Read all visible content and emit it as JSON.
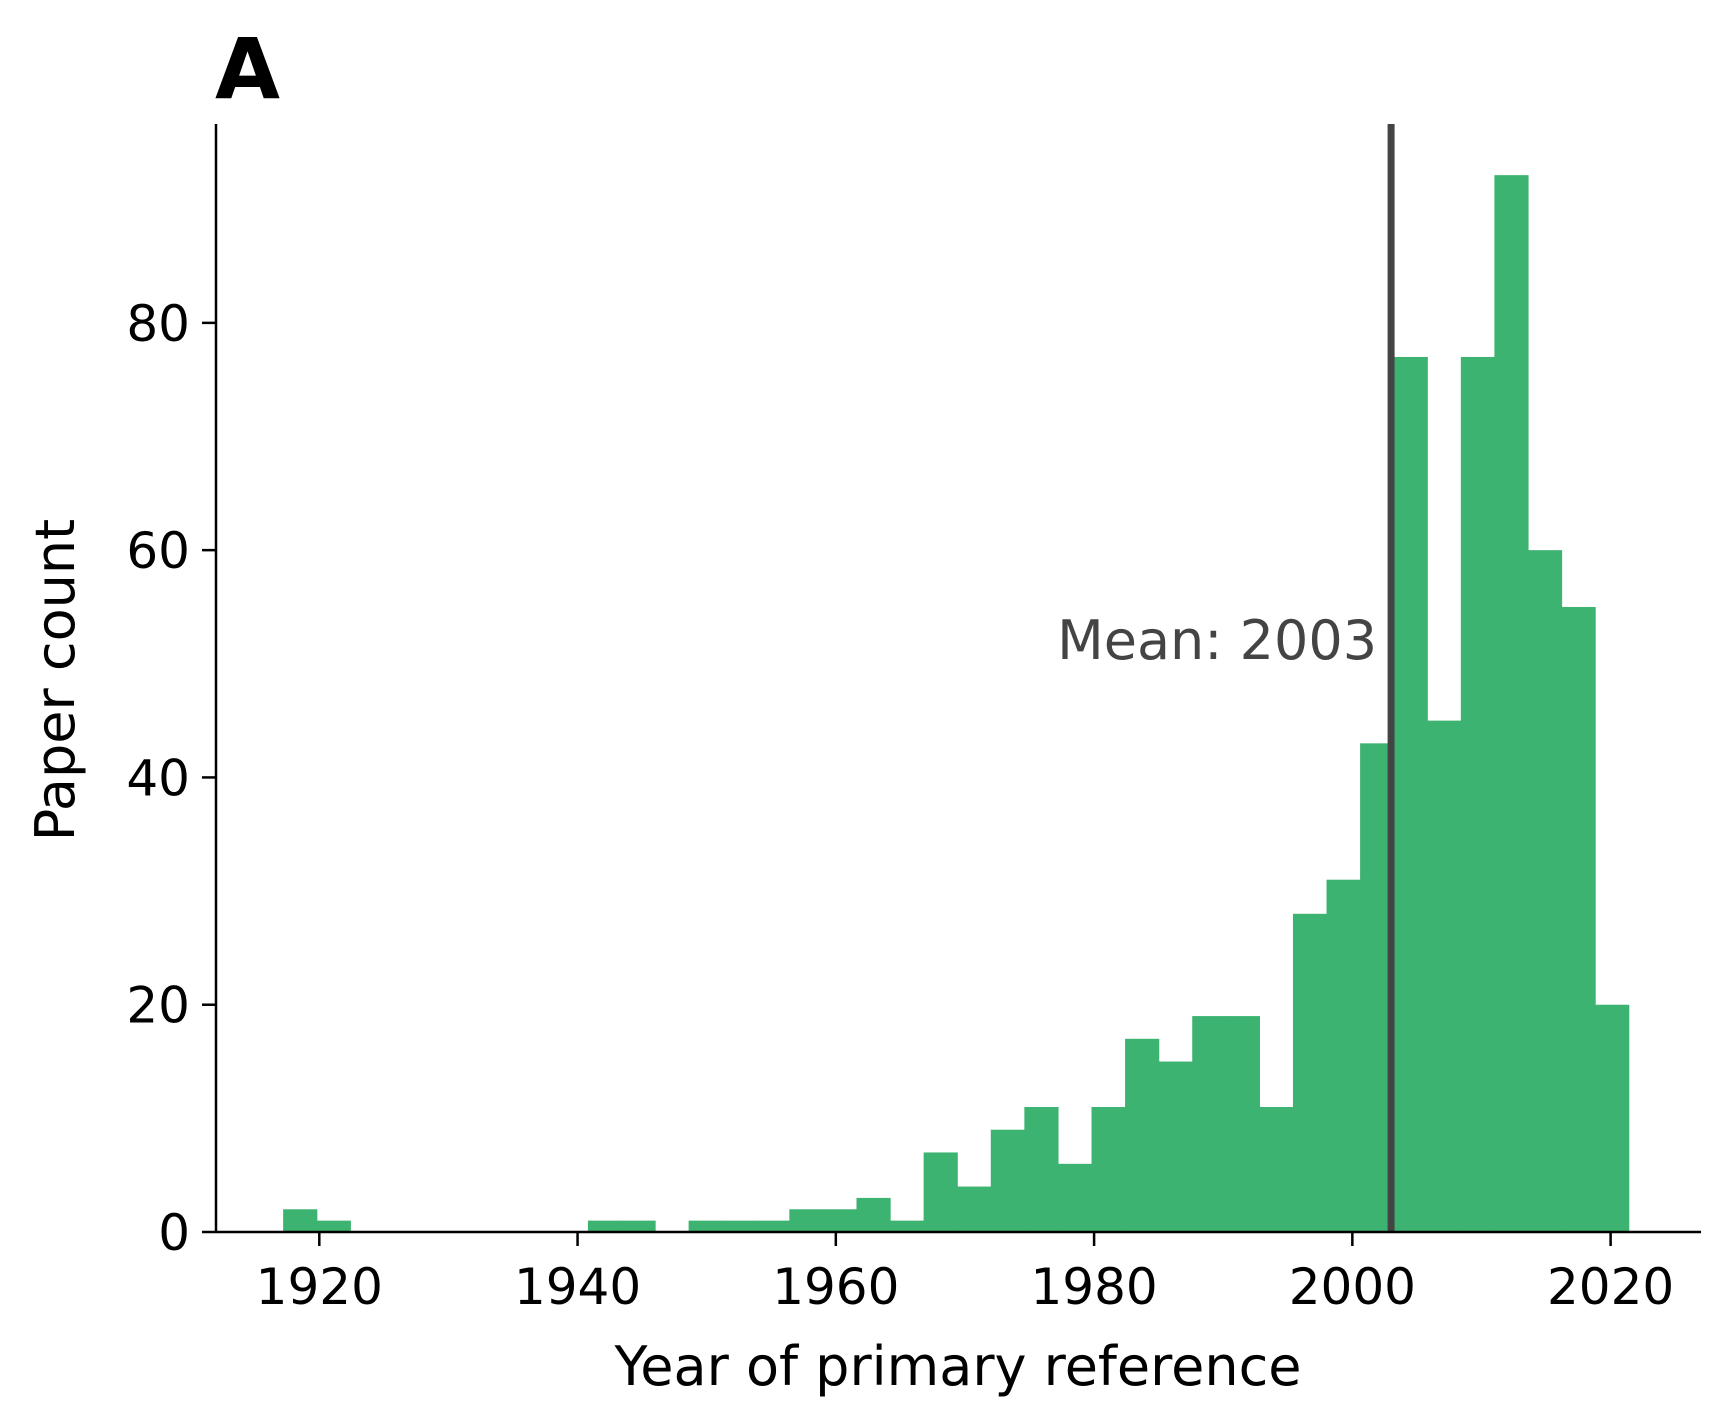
{
  "panel_label": "A",
  "chart_data": {
    "type": "bar",
    "subtype": "histogram",
    "xlabel": "Year of primary reference",
    "ylabel": "Paper count",
    "xlim": [
      1912,
      2027
    ],
    "ylim": [
      0,
      97.5
    ],
    "xticks": [
      1920,
      1940,
      1960,
      1980,
      2000,
      2020
    ],
    "yticks": [
      0,
      20,
      40,
      60,
      80
    ],
    "grid": false,
    "bar_color": "#3cb371",
    "bins": [
      {
        "x0": 1917.2,
        "x1": 1919.8,
        "count": 2
      },
      {
        "x0": 1919.8,
        "x1": 1922.4,
        "count": 1
      },
      {
        "x0": 1940.8,
        "x1": 1943.4,
        "count": 1
      },
      {
        "x0": 1943.4,
        "x1": 1946.0,
        "count": 1
      },
      {
        "x0": 1948.6,
        "x1": 1951.2,
        "count": 1
      },
      {
        "x0": 1951.2,
        "x1": 1953.8,
        "count": 1
      },
      {
        "x0": 1953.8,
        "x1": 1956.4,
        "count": 1
      },
      {
        "x0": 1956.4,
        "x1": 1959.0,
        "count": 2
      },
      {
        "x0": 1959.0,
        "x1": 1961.6,
        "count": 2
      },
      {
        "x0": 1961.6,
        "x1": 1964.2,
        "count": 3
      },
      {
        "x0": 1964.2,
        "x1": 1966.8,
        "count": 1
      },
      {
        "x0": 1966.8,
        "x1": 1969.4,
        "count": 7
      },
      {
        "x0": 1969.4,
        "x1": 1972.0,
        "count": 4
      },
      {
        "x0": 1972.0,
        "x1": 1974.6,
        "count": 9
      },
      {
        "x0": 1974.6,
        "x1": 1977.2,
        "count": 11
      },
      {
        "x0": 1977.2,
        "x1": 1979.8,
        "count": 6
      },
      {
        "x0": 1979.8,
        "x1": 1982.4,
        "count": 11
      },
      {
        "x0": 1982.4,
        "x1": 1985.0,
        "count": 17
      },
      {
        "x0": 1985.0,
        "x1": 1987.6,
        "count": 15
      },
      {
        "x0": 1987.6,
        "x1": 1990.2,
        "count": 19
      },
      {
        "x0": 1990.2,
        "x1": 1992.8,
        "count": 19
      },
      {
        "x0": 1992.8,
        "x1": 1995.4,
        "count": 11
      },
      {
        "x0": 1995.4,
        "x1": 1998.0,
        "count": 28
      },
      {
        "x0": 1998.0,
        "x1": 2000.6,
        "count": 31
      },
      {
        "x0": 2000.6,
        "x1": 2003.2,
        "count": 43
      },
      {
        "x0": 2003.2,
        "x1": 2005.8,
        "count": 77
      },
      {
        "x0": 2005.8,
        "x1": 2008.4,
        "count": 45
      },
      {
        "x0": 2008.4,
        "x1": 2011.0,
        "count": 77
      },
      {
        "x0": 2011.0,
        "x1": 2013.6,
        "count": 93
      },
      {
        "x0": 2013.6,
        "x1": 2016.2,
        "count": 60
      },
      {
        "x0": 2016.2,
        "x1": 2018.8,
        "count": 55
      },
      {
        "x0": 2018.8,
        "x1": 2021.4,
        "count": 20
      }
    ],
    "mean_line": {
      "x": 2003,
      "label": "Mean: 2003",
      "color": "#444444"
    }
  }
}
